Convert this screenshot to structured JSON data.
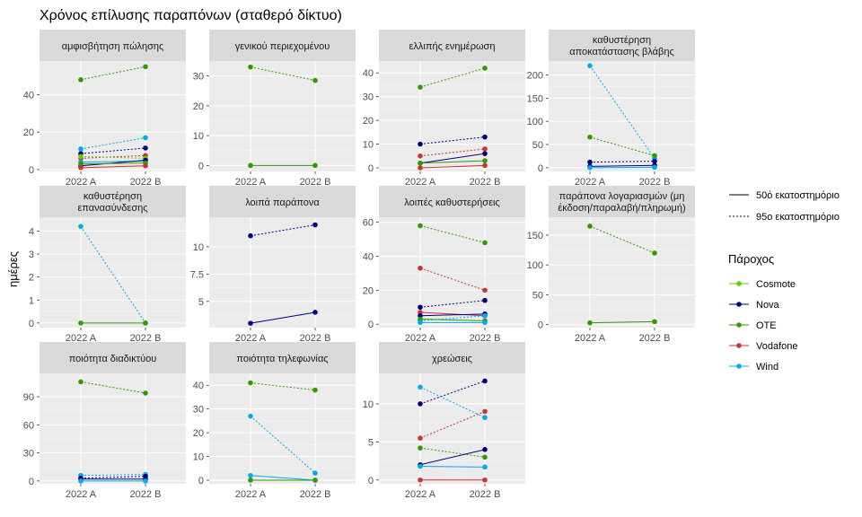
{
  "chart_data": {
    "type": "line",
    "title": "Χρόνος επίλυσης παραπόνων (σταθερό δίκτυο)",
    "ylabel": "ημέρες",
    "categories": [
      "2022 A",
      "2022 B"
    ],
    "grid": true,
    "legend_linetype": {
      "entries": [
        {
          "name": "50ό εκατοστημόριο",
          "dash": "solid"
        },
        {
          "name": "95ο εκατοστημόριο",
          "dash": "dotted"
        }
      ]
    },
    "legend_provider": {
      "title": "Πάροχος",
      "entries": [
        {
          "name": "Cosmote",
          "color": "#66CC00"
        },
        {
          "name": "Nova",
          "color": "#000080"
        },
        {
          "name": "OTE",
          "color": "#339900"
        },
        {
          "name": "Vodafone",
          "color": "#CC3333"
        },
        {
          "name": "Wind",
          "color": "#00AAEE"
        }
      ]
    },
    "panels": [
      {
        "title": [
          "αμφισβήτηση πώλησης"
        ],
        "ylim": [
          -1,
          58
        ],
        "yticks": [
          0,
          20,
          40
        ],
        "series": [
          {
            "provider": "OTE",
            "pct": "p95",
            "values": [
              48,
              55
            ]
          },
          {
            "provider": "Wind",
            "pct": "p95",
            "values": [
              11,
              17
            ]
          },
          {
            "provider": "Nova",
            "pct": "p95",
            "values": [
              8.5,
              11.5
            ]
          },
          {
            "provider": "Vodafone",
            "pct": "p95",
            "values": [
              6,
              7.5
            ]
          },
          {
            "provider": "Cosmote",
            "pct": "p95",
            "values": [
              7,
              6
            ]
          },
          {
            "provider": "Wind",
            "pct": "p50",
            "values": [
              4,
              4.5
            ]
          },
          {
            "provider": "Nova",
            "pct": "p50",
            "values": [
              2,
              5
            ]
          },
          {
            "provider": "OTE",
            "pct": "p50",
            "values": [
              3,
              3.5
            ]
          },
          {
            "provider": "Vodafone",
            "pct": "p50",
            "values": [
              1,
              2
            ]
          }
        ]
      },
      {
        "title": [
          "γενικού περιεχομένου"
        ],
        "ylim": [
          -2,
          35
        ],
        "yticks": [
          0,
          10,
          20,
          30
        ],
        "series": [
          {
            "provider": "OTE",
            "pct": "p95",
            "values": [
              33,
              28.5
            ]
          },
          {
            "provider": "OTE",
            "pct": "p50",
            "values": [
              0,
              0
            ]
          }
        ]
      },
      {
        "title": [
          "ελλιπής ενημέρωση"
        ],
        "ylim": [
          -1.5,
          45
        ],
        "yticks": [
          0,
          10,
          20,
          30,
          40
        ],
        "series": [
          {
            "provider": "OTE",
            "pct": "p95",
            "values": [
              34,
              42
            ]
          },
          {
            "provider": "Nova",
            "pct": "p95",
            "values": [
              10,
              13
            ]
          },
          {
            "provider": "Vodafone",
            "pct": "p95",
            "values": [
              5,
              8
            ]
          },
          {
            "provider": "Nova",
            "pct": "p50",
            "values": [
              2,
              6
            ]
          },
          {
            "provider": "OTE",
            "pct": "p50",
            "values": [
              2,
              3
            ]
          },
          {
            "provider": "Vodafone",
            "pct": "p50",
            "values": [
              0,
              1
            ]
          }
        ]
      },
      {
        "title": [
          "καθυστέρηση",
          "αποκατάστασης βλάβης"
        ],
        "ylim": [
          -8,
          230
        ],
        "yticks": [
          0,
          50,
          100,
          150,
          200
        ],
        "series": [
          {
            "provider": "Wind",
            "pct": "p95",
            "values": [
              220,
              20
            ]
          },
          {
            "provider": "OTE",
            "pct": "p95",
            "values": [
              66,
              26
            ]
          },
          {
            "provider": "Nova",
            "pct": "p95",
            "values": [
              12,
              14
            ]
          },
          {
            "provider": "Nova",
            "pct": "p50",
            "values": [
              3,
              5
            ]
          },
          {
            "provider": "Wind",
            "pct": "p50",
            "values": [
              0,
              1
            ]
          }
        ]
      },
      {
        "title": [
          "καθυστέρηση",
          "επανασύνδεσης"
        ],
        "ylim": [
          -0.2,
          4.6
        ],
        "yticks": [
          0,
          1,
          2,
          3,
          4
        ],
        "series": [
          {
            "provider": "Wind",
            "pct": "p95",
            "values": [
              4.2,
              0
            ]
          },
          {
            "provider": "OTE",
            "pct": "p50",
            "values": [
              0,
              0
            ]
          }
        ]
      },
      {
        "title": [
          "λοιπά παράπονα"
        ],
        "ylim": [
          2.6,
          12.7
        ],
        "yticks": [
          5.0,
          7.5,
          10.0
        ],
        "series": [
          {
            "provider": "Nova",
            "pct": "p95",
            "values": [
              11,
              12
            ]
          },
          {
            "provider": "Nova",
            "pct": "p50",
            "values": [
              3,
              4
            ]
          }
        ]
      },
      {
        "title": [
          "λοιπές καθυστερήσεις"
        ],
        "ylim": [
          -2,
          63
        ],
        "yticks": [
          0,
          20,
          40,
          60
        ],
        "series": [
          {
            "provider": "OTE",
            "pct": "p95",
            "values": [
              58,
              48
            ]
          },
          {
            "provider": "Vodafone",
            "pct": "p95",
            "values": [
              33,
              20
            ]
          },
          {
            "provider": "Nova",
            "pct": "p95",
            "values": [
              10,
              14
            ]
          },
          {
            "provider": "Vodafone",
            "pct": "p50",
            "values": [
              7,
              5
            ]
          },
          {
            "provider": "Nova",
            "pct": "p50",
            "values": [
              5,
              6
            ]
          },
          {
            "provider": "Wind",
            "pct": "p95",
            "values": [
              2,
              5
            ]
          },
          {
            "provider": "OTE",
            "pct": "p50",
            "values": [
              3,
              2
            ]
          },
          {
            "provider": "Wind",
            "pct": "p50",
            "values": [
              1,
              1
            ]
          }
        ]
      },
      {
        "title": [
          "παράπονα λογαριασμών (μη",
          "έκδοση/παραλαβή/πληρωμή)"
        ],
        "ylim": [
          -5,
          180
        ],
        "yticks": [
          0,
          50,
          100,
          150
        ],
        "series": [
          {
            "provider": "OTE",
            "pct": "p95",
            "values": [
              165,
              120
            ]
          },
          {
            "provider": "OTE",
            "pct": "p50",
            "values": [
              3,
              5
            ]
          }
        ]
      },
      {
        "title": [
          "ποιότητα διαδικτύου"
        ],
        "ylim": [
          -3,
          115
        ],
        "yticks": [
          0,
          30,
          60,
          90
        ],
        "series": [
          {
            "provider": "OTE",
            "pct": "p95",
            "values": [
              106,
              94
            ]
          },
          {
            "provider": "Wind",
            "pct": "p95",
            "values": [
              6,
              7
            ]
          },
          {
            "provider": "Nova",
            "pct": "p95",
            "values": [
              3,
              5
            ]
          },
          {
            "provider": "Nova",
            "pct": "p50",
            "values": [
              2,
              2
            ]
          },
          {
            "provider": "Wind",
            "pct": "p50",
            "values": [
              0,
              0
            ]
          }
        ]
      },
      {
        "title": [
          "ποιότητα τηλεφωνίας"
        ],
        "ylim": [
          -1.5,
          45
        ],
        "yticks": [
          0,
          10,
          20,
          30,
          40
        ],
        "series": [
          {
            "provider": "OTE",
            "pct": "p95",
            "values": [
              41,
              38
            ]
          },
          {
            "provider": "Wind",
            "pct": "p95",
            "values": [
              27,
              3
            ]
          },
          {
            "provider": "Wind",
            "pct": "p50",
            "values": [
              2,
              0
            ]
          },
          {
            "provider": "OTE",
            "pct": "p50",
            "values": [
              0,
              0
            ]
          }
        ]
      },
      {
        "title": [
          "χρεώσεις"
        ],
        "ylim": [
          -0.5,
          14
        ],
        "yticks": [
          0,
          5,
          10
        ],
        "series": [
          {
            "provider": "Nova",
            "pct": "p95",
            "values": [
              10,
              13
            ]
          },
          {
            "provider": "Wind",
            "pct": "p95",
            "values": [
              12.2,
              8.2
            ]
          },
          {
            "provider": "Vodafone",
            "pct": "p95",
            "values": [
              5.5,
              9
            ]
          },
          {
            "provider": "OTE",
            "pct": "p95",
            "values": [
              4.2,
              3
            ]
          },
          {
            "provider": "Nova",
            "pct": "p50",
            "values": [
              2,
              4
            ]
          },
          {
            "provider": "Wind",
            "pct": "p50",
            "values": [
              1.8,
              1.7
            ]
          },
          {
            "provider": "Vodafone",
            "pct": "p50",
            "values": [
              0,
              0
            ]
          }
        ]
      }
    ]
  }
}
